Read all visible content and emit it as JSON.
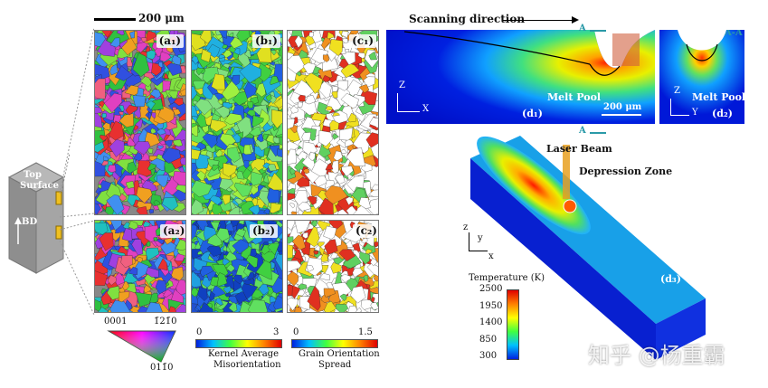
{
  "scalebar_top": "200 μm",
  "panels": {
    "a1": "(a₁)",
    "b1": "(b₁)",
    "c1": "(c₁)",
    "a2": "(a₂)",
    "b2": "(b₂)",
    "c2": "(c₂)",
    "d1": "(d₁)",
    "d2": "(d₂)",
    "d3": "(d₃)"
  },
  "cube": {
    "top": "Top",
    "surface": "Surface",
    "bd": "BD"
  },
  "ipf": {
    "left": "0001",
    "right": "1̄21̄0",
    "bottom": "011̄0"
  },
  "kam": {
    "min": "0",
    "max": "3",
    "label1": "Kernel Average",
    "label2": "Misorientation"
  },
  "gos": {
    "min": "0",
    "max": "1.5",
    "label1": "Grain Orientation",
    "label2": "Spread"
  },
  "sim": {
    "scanning": "Scanning direction",
    "section_a": "A",
    "section_aa": "A-A",
    "melt_pool": "Melt Pool",
    "scale": "200 μm",
    "axis_z": "Z",
    "axis_x": "X",
    "axis_y": "Y",
    "laser_beam": "Laser Beam",
    "depression": "Depression Zone",
    "axis3_z": "z",
    "axis3_y": "y",
    "axis3_x": "x"
  },
  "temperature": {
    "title": "Temperature (K)",
    "ticks": [
      "2500",
      "1950",
      "1400",
      "850",
      "300"
    ]
  },
  "watermark": "知乎 @杨重霸",
  "colors": {
    "jet_red": "#e8102a",
    "jet_blue": "#1020d8",
    "teal": "#2a9aa8"
  }
}
